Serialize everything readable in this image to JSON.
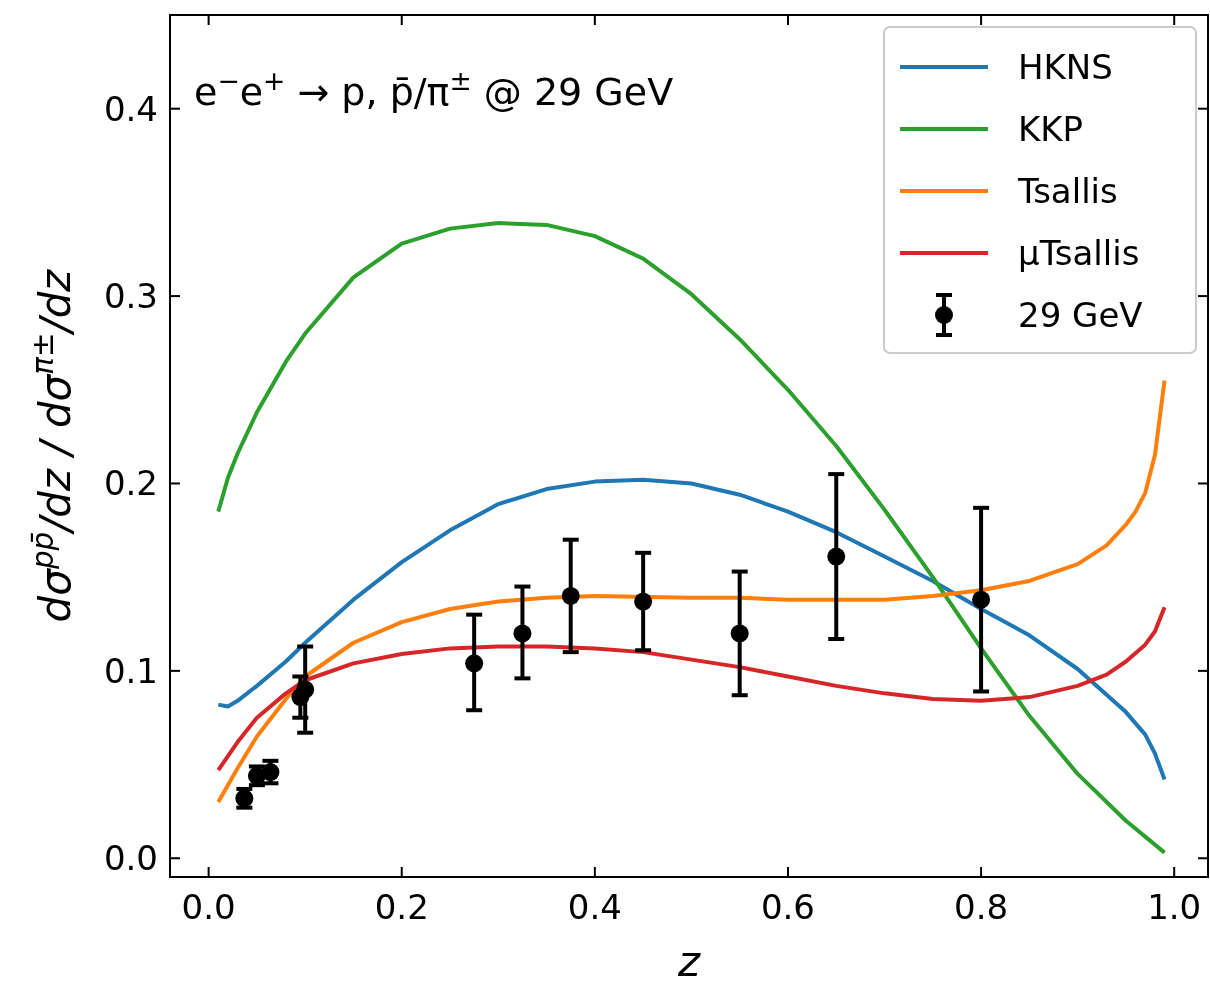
{
  "chart_data": {
    "type": "line",
    "title": "e$^{−}$e$^{+}$ → p, p̄/π$^{±}$ @ 29 GeV",
    "xlabel": "z",
    "ylabel": "dσ$^{pp̄}$/dz / dσ$^{π±}$/dz",
    "xlim": [
      -0.04,
      1.035
    ],
    "ylim": [
      -0.01,
      0.45
    ],
    "xticks": [
      {
        "value": 0,
        "label": "0.0"
      },
      {
        "value": 0.2,
        "label": "0.2"
      },
      {
        "value": 0.4,
        "label": "0.4"
      },
      {
        "value": 0.6,
        "label": "0.6"
      },
      {
        "value": 0.8,
        "label": "0.8"
      },
      {
        "value": 1,
        "label": "1.0"
      }
    ],
    "yticks": [
      {
        "value": 0,
        "label": "0.0"
      },
      {
        "value": 0.1,
        "label": "0.1"
      },
      {
        "value": 0.2,
        "label": "0.2"
      },
      {
        "value": 0.3,
        "label": "0.3"
      },
      {
        "value": 0.4,
        "label": "0.4"
      }
    ],
    "legend": "top right",
    "grid": false,
    "series": [
      {
        "name": "HKNS",
        "color": "#1f77b4",
        "x": [
          0.01,
          0.02,
          0.03,
          0.05,
          0.08,
          0.1,
          0.15,
          0.2,
          0.25,
          0.3,
          0.35,
          0.4,
          0.45,
          0.5,
          0.55,
          0.6,
          0.65,
          0.7,
          0.75,
          0.8,
          0.85,
          0.9,
          0.95,
          0.97,
          0.98,
          0.99
        ],
        "values": [
          0.082,
          0.081,
          0.084,
          0.092,
          0.105,
          0.115,
          0.138,
          0.158,
          0.175,
          0.189,
          0.197,
          0.201,
          0.202,
          0.2,
          0.194,
          0.185,
          0.174,
          0.161,
          0.148,
          0.133,
          0.119,
          0.101,
          0.078,
          0.066,
          0.056,
          0.042
        ]
      },
      {
        "name": "KKP",
        "color": "#2ca02c",
        "x": [
          0.01,
          0.02,
          0.03,
          0.05,
          0.08,
          0.1,
          0.15,
          0.2,
          0.25,
          0.3,
          0.35,
          0.4,
          0.45,
          0.5,
          0.55,
          0.6,
          0.65,
          0.7,
          0.75,
          0.8,
          0.85,
          0.9,
          0.95,
          0.99
        ],
        "values": [
          0.185,
          0.203,
          0.216,
          0.238,
          0.265,
          0.28,
          0.31,
          0.328,
          0.336,
          0.339,
          0.338,
          0.332,
          0.32,
          0.301,
          0.277,
          0.25,
          0.22,
          0.186,
          0.15,
          0.112,
          0.076,
          0.045,
          0.02,
          0.003
        ]
      },
      {
        "name": "Tsallis",
        "color": "#ff7f0e",
        "x": [
          0.01,
          0.03,
          0.05,
          0.08,
          0.1,
          0.15,
          0.2,
          0.25,
          0.3,
          0.35,
          0.4,
          0.5,
          0.55,
          0.6,
          0.65,
          0.7,
          0.75,
          0.8,
          0.85,
          0.9,
          0.93,
          0.95,
          0.96,
          0.97,
          0.98,
          0.99
        ],
        "values": [
          0.03,
          0.048,
          0.065,
          0.085,
          0.097,
          0.115,
          0.126,
          0.133,
          0.137,
          0.139,
          0.14,
          0.139,
          0.139,
          0.138,
          0.138,
          0.138,
          0.14,
          0.143,
          0.148,
          0.157,
          0.167,
          0.178,
          0.185,
          0.195,
          0.215,
          0.255
        ]
      },
      {
        "name": "μTsallis",
        "color": "#d62728",
        "x": [
          0.01,
          0.03,
          0.05,
          0.08,
          0.1,
          0.15,
          0.2,
          0.25,
          0.3,
          0.35,
          0.4,
          0.45,
          0.5,
          0.55,
          0.6,
          0.65,
          0.7,
          0.75,
          0.8,
          0.85,
          0.9,
          0.93,
          0.95,
          0.97,
          0.98,
          0.99
        ],
        "values": [
          0.047,
          0.062,
          0.075,
          0.088,
          0.095,
          0.104,
          0.109,
          0.112,
          0.113,
          0.113,
          0.112,
          0.11,
          0.106,
          0.102,
          0.097,
          0.092,
          0.088,
          0.085,
          0.084,
          0.086,
          0.092,
          0.098,
          0.105,
          0.114,
          0.121,
          0.134
        ]
      },
      {
        "name": "29 GeV",
        "type": "scatter",
        "marker": "circle",
        "color": "#000000",
        "x": [
          0.037,
          0.05,
          0.064,
          0.095,
          0.1,
          0.275,
          0.325,
          0.375,
          0.45,
          0.55,
          0.65,
          0.8
        ],
        "values": [
          0.032,
          0.044,
          0.046,
          0.086,
          0.09,
          0.104,
          0.12,
          0.14,
          0.137,
          0.12,
          0.161,
          0.138
        ],
        "errors": [
          0.005,
          0.005,
          0.006,
          0.011,
          [
            0.067,
            0.113
          ],
          [
            0.079,
            0.13
          ],
          [
            0.096,
            0.145
          ],
          [
            0.11,
            0.17
          ],
          [
            0.111,
            0.163
          ],
          [
            0.087,
            0.153
          ],
          [
            0.117,
            0.205
          ],
          [
            0.089,
            0.187
          ]
        ]
      }
    ]
  }
}
